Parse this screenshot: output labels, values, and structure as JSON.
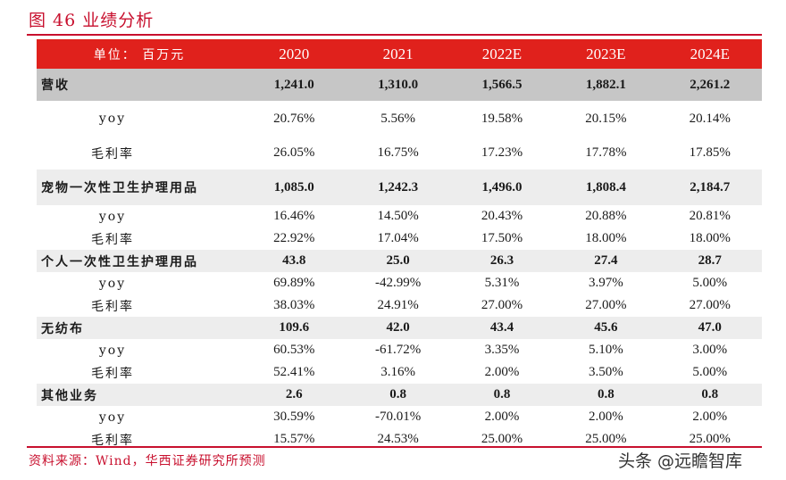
{
  "figure_title": "图 46 业绩分析",
  "table": {
    "unit_label": "单位： 百万元",
    "years": [
      "2020",
      "2021",
      "2022E",
      "2023E",
      "2024E"
    ],
    "rows": [
      {
        "label": "营收",
        "values": [
          "1,241.0",
          "1,310.0",
          "1,566.5",
          "1,882.1",
          "2,261.2"
        ]
      },
      {
        "label": "yoy",
        "values": [
          "20.76%",
          "5.56%",
          "19.58%",
          "20.15%",
          "20.14%"
        ]
      },
      {
        "label": "毛利率",
        "values": [
          "26.05%",
          "16.75%",
          "17.23%",
          "17.78%",
          "17.85%"
        ]
      },
      {
        "label": "宠物一次性卫生护理用品",
        "values": [
          "1,085.0",
          "1,242.3",
          "1,496.0",
          "1,808.4",
          "2,184.7"
        ]
      },
      {
        "label": "yoy",
        "values": [
          "16.46%",
          "14.50%",
          "20.43%",
          "20.88%",
          "20.81%"
        ]
      },
      {
        "label": "毛利率",
        "values": [
          "22.92%",
          "17.04%",
          "17.50%",
          "18.00%",
          "18.00%"
        ]
      },
      {
        "label": "个人一次性卫生护理用品",
        "values": [
          "43.8",
          "25.0",
          "26.3",
          "27.4",
          "28.7"
        ]
      },
      {
        "label": "yoy",
        "values": [
          "69.89%",
          "-42.99%",
          "5.31%",
          "3.97%",
          "5.00%"
        ]
      },
      {
        "label": "毛利率",
        "values": [
          "38.03%",
          "24.91%",
          "27.00%",
          "27.00%",
          "27.00%"
        ]
      },
      {
        "label": "无纺布",
        "values": [
          "109.6",
          "42.0",
          "43.4",
          "45.6",
          "47.0"
        ]
      },
      {
        "label": "yoy",
        "values": [
          "60.53%",
          "-61.72%",
          "3.35%",
          "5.10%",
          "3.00%"
        ]
      },
      {
        "label": "毛利率",
        "values": [
          "52.41%",
          "3.16%",
          "2.00%",
          "3.50%",
          "5.00%"
        ]
      },
      {
        "label": "其他业务",
        "values": [
          "2.6",
          "0.8",
          "0.8",
          "0.8",
          "0.8"
        ]
      },
      {
        "label": "yoy",
        "values": [
          "30.59%",
          "-70.01%",
          "2.00%",
          "2.00%",
          "2.00%"
        ]
      },
      {
        "label": "毛利率",
        "values": [
          "15.57%",
          "24.53%",
          "25.00%",
          "25.00%",
          "25.00%"
        ]
      }
    ]
  },
  "source": "资料来源：Wind，华西证券研究所预测",
  "watermark": "头条 @远瞻智库"
}
